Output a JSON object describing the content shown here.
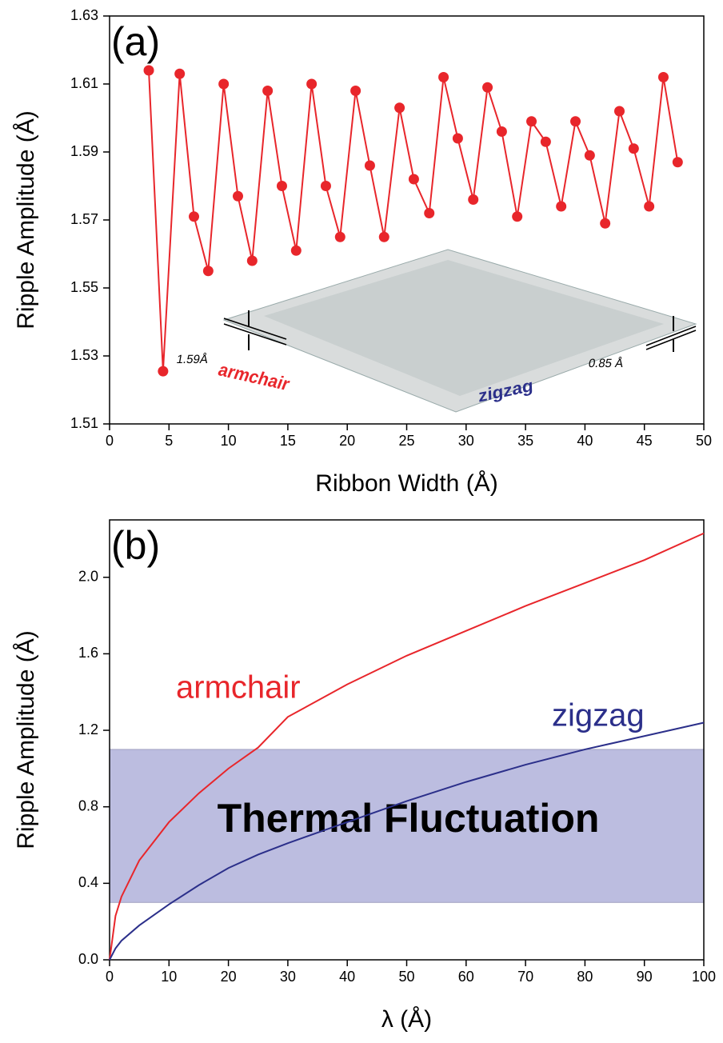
{
  "chart_data": [
    {
      "type": "line",
      "panel_label": "(a)",
      "x_label": "Ribbon Width (Å)",
      "y_label": "Ripple Amplitude (Å)",
      "xlim": [
        0,
        50
      ],
      "xticks": [
        0,
        5,
        10,
        15,
        20,
        25,
        30,
        35,
        40,
        45,
        50
      ],
      "ylim": [
        1.51,
        1.63
      ],
      "yticks": [
        1.51,
        1.53,
        1.55,
        1.57,
        1.59,
        1.61,
        1.63
      ],
      "markers": true,
      "x": [
        3.3,
        4.5,
        5.9,
        7.1,
        8.3,
        9.6,
        10.8,
        12.0,
        13.3,
        14.5,
        15.7,
        17.0,
        18.2,
        19.4,
        20.7,
        21.9,
        23.1,
        24.4,
        25.6,
        26.9,
        28.1,
        29.3,
        30.6,
        31.8,
        33.0,
        34.3,
        35.5,
        36.7,
        38.0,
        39.2,
        40.4,
        41.7,
        42.9,
        44.1,
        45.4,
        46.6,
        47.8
      ],
      "series": [
        {
          "color": "#e8262b",
          "values": [
            1.614,
            1.5255,
            1.613,
            1.571,
            1.555,
            1.61,
            1.577,
            1.558,
            1.608,
            1.58,
            1.561,
            1.61,
            1.58,
            1.565,
            1.608,
            1.586,
            1.565,
            1.603,
            1.582,
            1.572,
            1.612,
            1.594,
            1.576,
            1.609,
            1.596,
            1.571,
            1.599,
            1.593,
            1.574,
            1.599,
            1.589,
            1.569,
            1.602,
            1.591,
            1.574,
            1.612,
            1.587
          ]
        }
      ],
      "annotations": [
        "1.59Å",
        "0.85 Å",
        "armchair",
        "zigzag"
      ]
    },
    {
      "type": "line",
      "panel_label": "(b)",
      "x_label": "λ (Å)",
      "y_label": "Ripple Amplitude (Å)",
      "xlim": [
        0,
        100
      ],
      "xticks": [
        0,
        10,
        20,
        30,
        40,
        50,
        60,
        70,
        80,
        90,
        100
      ],
      "ylim": [
        0,
        2.3
      ],
      "yticks": [
        {
          "value": 0,
          "label": "0.0"
        },
        0.4,
        0.8,
        1.2,
        1.6,
        {
          "value": 2,
          "label": "2.0"
        }
      ],
      "markers": false,
      "shaded_range": [
        0.3,
        1.1
      ],
      "shaded_label": "Thermal Fluctuation",
      "x": [
        0,
        1,
        2,
        5,
        10,
        15,
        20,
        25,
        30,
        40,
        50,
        60,
        70,
        80,
        90,
        100
      ],
      "series": [
        {
          "name": "armchair",
          "color": "#e8262b",
          "values": [
            0,
            0.23,
            0.33,
            0.52,
            0.72,
            0.87,
            1.0,
            1.11,
            1.27,
            1.44,
            1.59,
            1.72,
            1.85,
            1.97,
            2.09,
            2.23
          ]
        },
        {
          "name": "zigzag",
          "color": "#2b2f8a",
          "values": [
            0,
            0.06,
            0.1,
            0.18,
            0.29,
            0.39,
            0.48,
            0.55,
            0.61,
            0.72,
            0.83,
            0.93,
            1.02,
            1.1,
            1.17,
            1.24
          ]
        }
      ]
    }
  ]
}
